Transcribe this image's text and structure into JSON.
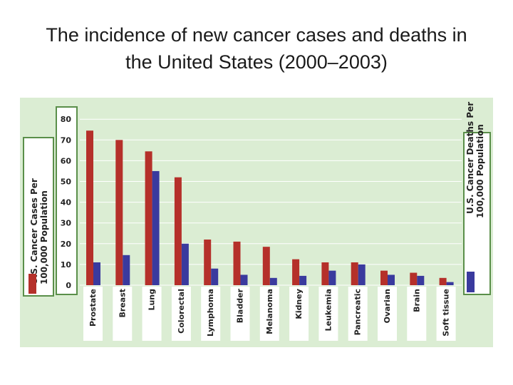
{
  "page": {
    "title_line1": "The incidence of new cancer cases and deaths in",
    "title_line2": "the United States (2000–2003)"
  },
  "chart_data": {
    "type": "bar",
    "categories": [
      "Prostate",
      "Breast",
      "Lung",
      "Colorectal",
      "Lymphoma",
      "Bladder",
      "Melanoma",
      "Kidney",
      "Leukemia",
      "Pancreatic",
      "Ovarian",
      "Brain",
      "Soft tissue"
    ],
    "series": [
      {
        "name": "U.S. Cancer Cases Per 100,000 Population",
        "color": "#b5302a",
        "values": [
          74.5,
          70,
          64.5,
          52,
          22,
          21,
          18.5,
          12.5,
          11,
          11,
          7,
          6,
          3.5
        ]
      },
      {
        "name": "U.S. Cancer Deaths Per 100,000 Population",
        "color": "#3a3a9e",
        "values": [
          11,
          14.5,
          55,
          20,
          8,
          5,
          3.5,
          4.5,
          7,
          10,
          5,
          4.5,
          1.5
        ]
      }
    ],
    "yticks": [
      "80",
      "70",
      "60",
      "50",
      "40",
      "30",
      "20",
      "10",
      "0"
    ],
    "ylim": [
      0,
      80
    ],
    "ylabel_left_line1": "U.S. Cancer Cases Per",
    "ylabel_left_line2": "100,000 Population",
    "ylabel_right_line1": "U.S. Cancer Deaths Per",
    "ylabel_right_line2": "100,000 Population",
    "background_color": "#dbedd3",
    "grid": true,
    "grid_color": "#ffffff"
  }
}
